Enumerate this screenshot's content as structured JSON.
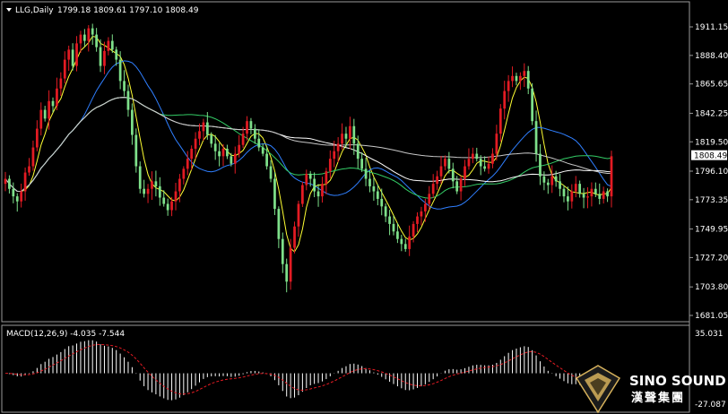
{
  "header": {
    "symbol": "LLG,Daily",
    "ohlc": "1799.18 1809.61 1797.10 1808.49"
  },
  "macd": {
    "label": "MACD(12,26,9) -4.035 -7.544",
    "ticks": [
      "35.031",
      "-27.087"
    ],
    "range": [
      -27.087,
      35.031
    ]
  },
  "price_axis": {
    "ticks": [
      "1911.15",
      "1888.40",
      "1865.65",
      "1842.25",
      "1819.50",
      "1796.10",
      "1773.35",
      "1749.95",
      "1727.20",
      "1703.80",
      "1681.05"
    ],
    "range": [
      1681.05,
      1911.15
    ],
    "last_price": "1808.49"
  },
  "logo": {
    "text_en": "SINO SOUND",
    "text_cn": "漢聲集團"
  },
  "colors": {
    "background": "#000000",
    "bull_candle": "#e31b23",
    "bear_candle": "#7ee08a",
    "ma_fast": "#ffff33",
    "ma_blue": "#2f7fff",
    "ma_green": "#33cc66",
    "ma_white": "#ffffff",
    "ma_gray": "#c8c8c8",
    "macd_hist": "#ffffff",
    "macd_signal": "#e31b23",
    "price_label_bg": "#ffffff"
  },
  "chart_data": {
    "type": "candlestick",
    "closes": [
      1790,
      1782,
      1776,
      1772,
      1780,
      1795,
      1800,
      1815,
      1830,
      1845,
      1838,
      1852,
      1848,
      1862,
      1870,
      1885,
      1893,
      1880,
      1898,
      1905,
      1900,
      1910,
      1905,
      1895,
      1880,
      1892,
      1900,
      1893,
      1885,
      1868,
      1860,
      1845,
      1825,
      1800,
      1782,
      1778,
      1782,
      1788,
      1784,
      1775,
      1770,
      1765,
      1772,
      1780,
      1790,
      1798,
      1806,
      1814,
      1822,
      1828,
      1835,
      1825,
      1818,
      1812,
      1808,
      1814,
      1808,
      1802,
      1810,
      1817,
      1826,
      1836,
      1830,
      1822,
      1815,
      1810,
      1800,
      1790,
      1766,
      1742,
      1722,
      1708,
      1735,
      1752,
      1770,
      1785,
      1794,
      1790,
      1780,
      1776,
      1786,
      1796,
      1806,
      1812,
      1818,
      1826,
      1822,
      1832,
      1818,
      1806,
      1798,
      1790,
      1784,
      1780,
      1774,
      1768,
      1760,
      1754,
      1748,
      1742,
      1738,
      1734,
      1744,
      1754,
      1760,
      1764,
      1770,
      1778,
      1786,
      1792,
      1800,
      1806,
      1798,
      1788,
      1780,
      1790,
      1800,
      1806,
      1810,
      1806,
      1800,
      1798,
      1802,
      1810,
      1826,
      1846,
      1860,
      1868,
      1872,
      1868,
      1872,
      1876,
      1862,
      1836,
      1810,
      1792,
      1787,
      1785,
      1792,
      1788,
      1782,
      1776,
      1772,
      1780,
      1786,
      1778,
      1775,
      1776,
      1782,
      1778,
      1774,
      1780,
      1776,
      1808
    ]
  }
}
